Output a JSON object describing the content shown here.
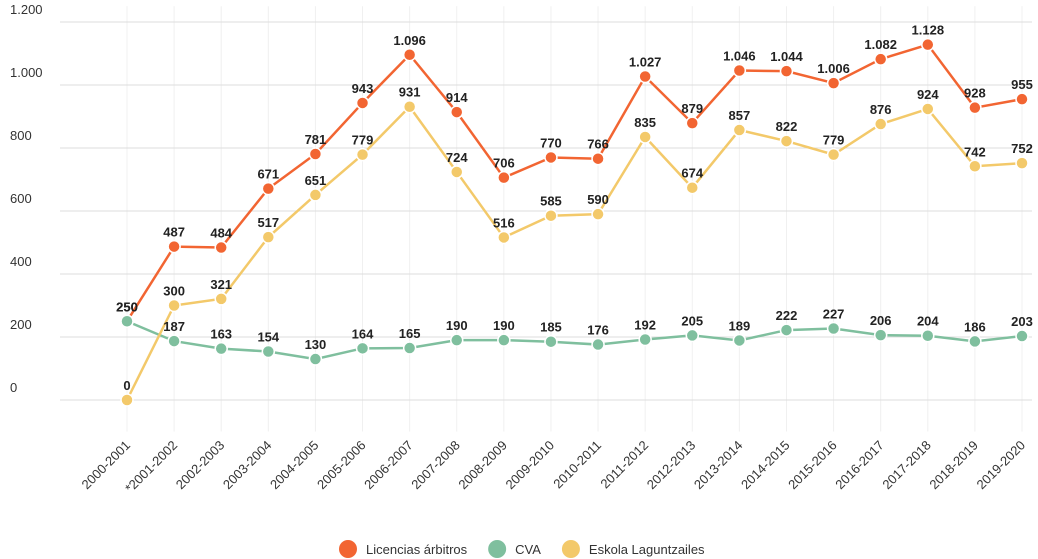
{
  "chart_data": {
    "type": "line",
    "categories": [
      "2000-2001",
      "*2001-2002",
      "2002-2003",
      "2003-2004",
      "2004-2005",
      "2005-2006",
      "2006-2007",
      "2007-2008",
      "2008-2009",
      "2009-2010",
      "2010-2011",
      "2011-2012",
      "2012-2013",
      "2013-2014",
      "2014-2015",
      "2015-2016",
      "2016-2017",
      "2017-2018",
      "2018-2019",
      "2019-2020"
    ],
    "series": [
      {
        "name": "Licencias árbitros",
        "color": "#f26532",
        "values": [
          250,
          487,
          484,
          671,
          781,
          943,
          1096,
          914,
          706,
          770,
          766,
          1027,
          879,
          1046,
          1044,
          1006,
          1082,
          1128,
          928,
          955
        ],
        "value_labels": [
          "250",
          "487",
          "484",
          "671",
          "781",
          "943",
          "1.096",
          "914",
          "706",
          "770",
          "766",
          "1.027",
          "879",
          "1.046",
          "1.044",
          "1.006",
          "1.082",
          "1.128",
          "928",
          "955"
        ]
      },
      {
        "name": "CVA",
        "color": "#7fbf9e",
        "values": [
          250,
          187,
          163,
          154,
          130,
          164,
          165,
          190,
          190,
          185,
          176,
          192,
          205,
          189,
          222,
          227,
          206,
          204,
          186,
          203
        ]
      },
      {
        "name": "Eskola Laguntzailes",
        "color": "#f3c96a",
        "values": [
          0,
          300,
          321,
          517,
          651,
          779,
          931,
          724,
          516,
          585,
          590,
          835,
          674,
          857,
          822,
          779,
          876,
          924,
          742,
          752
        ]
      }
    ],
    "ylim": [
      -100,
      1250
    ],
    "yticks": [
      0,
      200,
      400,
      600,
      800,
      {
        "value": 1000,
        "label": "1.000"
      },
      {
        "value": 1200,
        "label": "1.200"
      }
    ],
    "grid": true,
    "legend": "bottom"
  }
}
